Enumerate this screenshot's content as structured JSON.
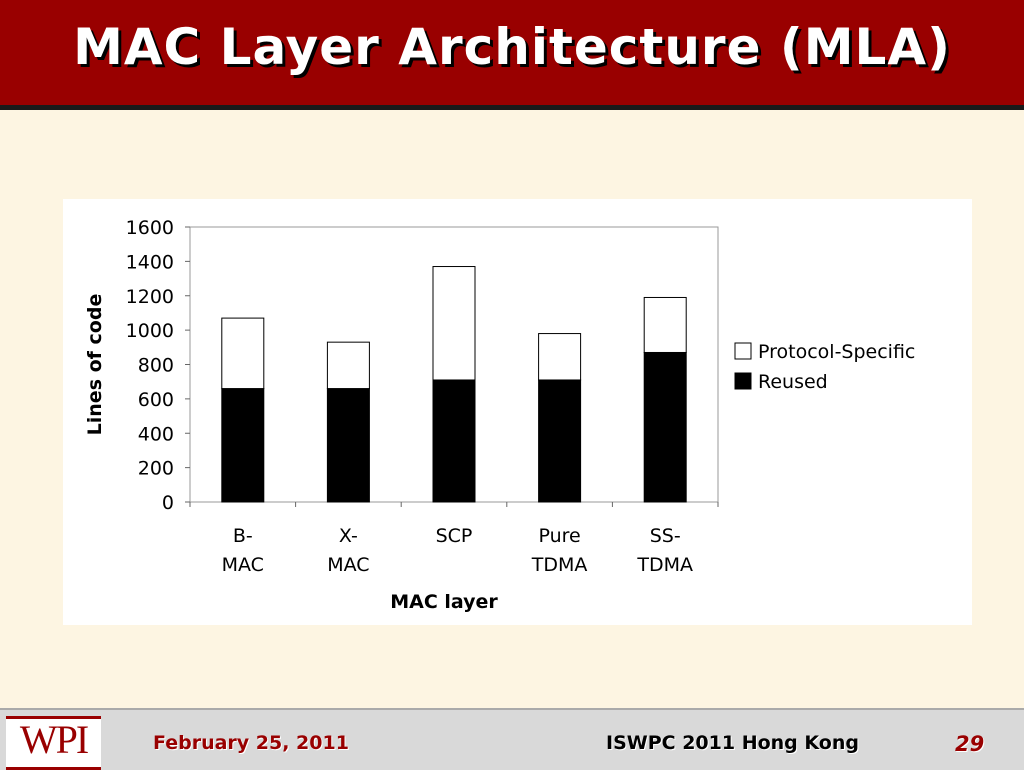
{
  "header": {
    "title": "MAC Layer Architecture (MLA)"
  },
  "chart_data": {
    "type": "stacked-bar",
    "categories": [
      "B-MAC",
      "X-MAC",
      "SCP",
      "Pure TDMA",
      "SS-TDMA"
    ],
    "series": [
      {
        "name": "Reused",
        "color": "#000000",
        "values": [
          660,
          660,
          710,
          710,
          870
        ]
      },
      {
        "name": "Protocol-Specific",
        "color": "#ffffff",
        "values": [
          410,
          270,
          660,
          270,
          320
        ]
      }
    ],
    "x_label": "MAC layer",
    "y_label": "Lines of code",
    "ylim": [
      0,
      1600
    ],
    "yticks": [
      0,
      200,
      400,
      600,
      800,
      1000,
      1200,
      1400,
      1600
    ],
    "grid": false,
    "legend": "right"
  },
  "footer": {
    "logo": "WPI",
    "date": "February 25, 2011",
    "conference": "ISWPC 2011 Hong Kong",
    "page": "29"
  }
}
